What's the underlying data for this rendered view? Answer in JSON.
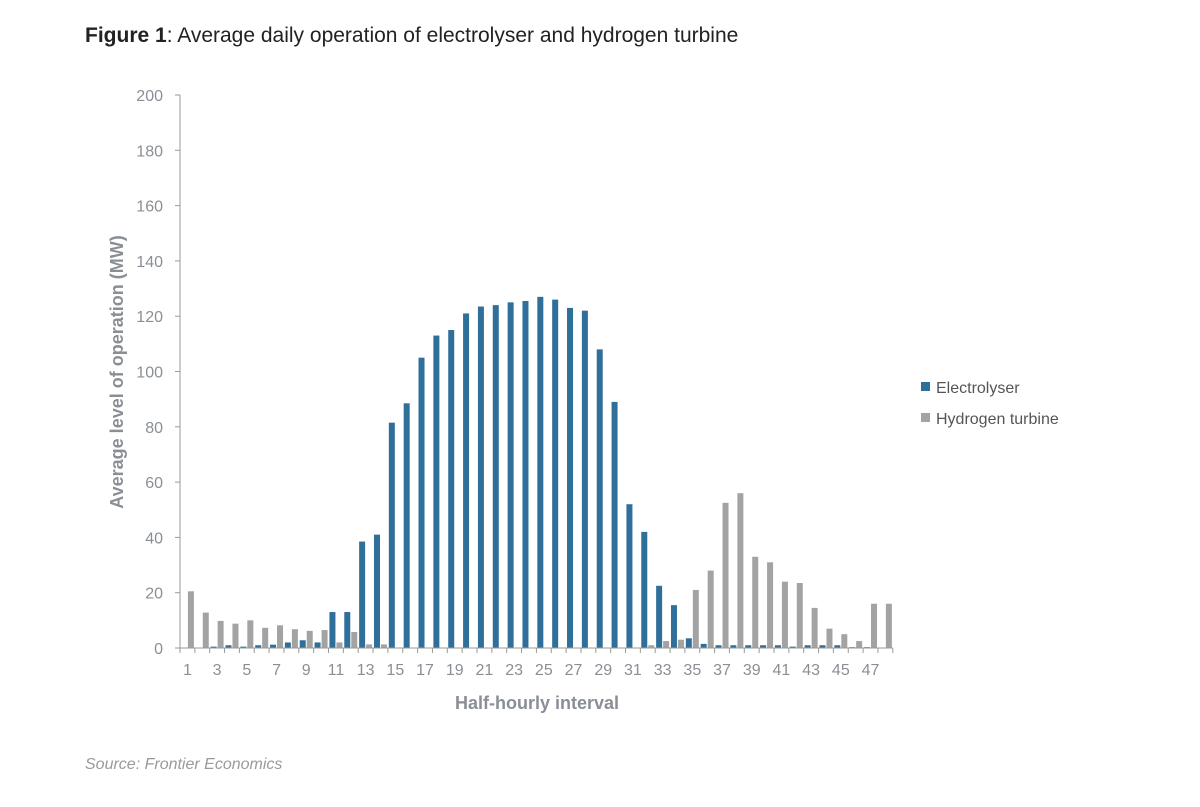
{
  "title": {
    "prefix": "Figure 1",
    "text": ": Average daily operation of electrolyser and hydrogen turbine"
  },
  "source": "Source: Frontier Economics",
  "chart_data": {
    "type": "bar",
    "title": "Average daily operation of electrolyser and hydrogen turbine",
    "xlabel": "Half-hourly interval",
    "ylabel": "Average level of operation (MW)",
    "ylim": [
      0,
      200
    ],
    "yticks": [
      0,
      20,
      40,
      60,
      80,
      100,
      120,
      140,
      160,
      180,
      200
    ],
    "xtick_labels": [
      "1",
      "3",
      "5",
      "7",
      "9",
      "11",
      "13",
      "15",
      "17",
      "19",
      "21",
      "23",
      "25",
      "27",
      "29",
      "31",
      "33",
      "35",
      "37",
      "39",
      "41",
      "43",
      "45",
      "47"
    ],
    "categories": [
      1,
      2,
      3,
      4,
      5,
      6,
      7,
      8,
      9,
      10,
      11,
      12,
      13,
      14,
      15,
      16,
      17,
      18,
      19,
      20,
      21,
      22,
      23,
      24,
      25,
      26,
      27,
      28,
      29,
      30,
      31,
      32,
      33,
      34,
      35,
      36,
      37,
      38,
      39,
      40,
      41,
      42,
      43,
      44,
      45,
      46,
      47,
      48
    ],
    "legend_position": "right",
    "grid": false,
    "series": [
      {
        "name": "Electrolyser",
        "color": "#2f6f99",
        "values": [
          0,
          0,
          0.5,
          1,
          0.5,
          1,
          1.2,
          2,
          2.8,
          2,
          13,
          13,
          38.5,
          41,
          81.5,
          88.5,
          105,
          113,
          115,
          121,
          123.5,
          124,
          125,
          125.5,
          127,
          126,
          123,
          122,
          108,
          89,
          52,
          42,
          22.5,
          15.5,
          3.5,
          1.5,
          1,
          1,
          1,
          1,
          1,
          0.5,
          1,
          1,
          1,
          0.3,
          0.3,
          0
        ]
      },
      {
        "name": "Hydrogen turbine",
        "color": "#a3a3a3",
        "values": [
          20.5,
          12.8,
          9.8,
          8.8,
          10,
          7.3,
          8.2,
          6.8,
          6.2,
          6.5,
          2,
          5.8,
          1.3,
          1.3,
          0,
          0,
          0,
          0,
          0,
          0,
          0,
          0,
          0,
          0,
          0,
          0,
          0,
          0,
          0,
          0,
          0,
          1,
          2.5,
          3,
          21,
          28,
          52.5,
          56,
          33,
          31,
          24,
          23.5,
          14.5,
          7,
          5,
          2.5,
          16,
          16
        ]
      }
    ]
  }
}
